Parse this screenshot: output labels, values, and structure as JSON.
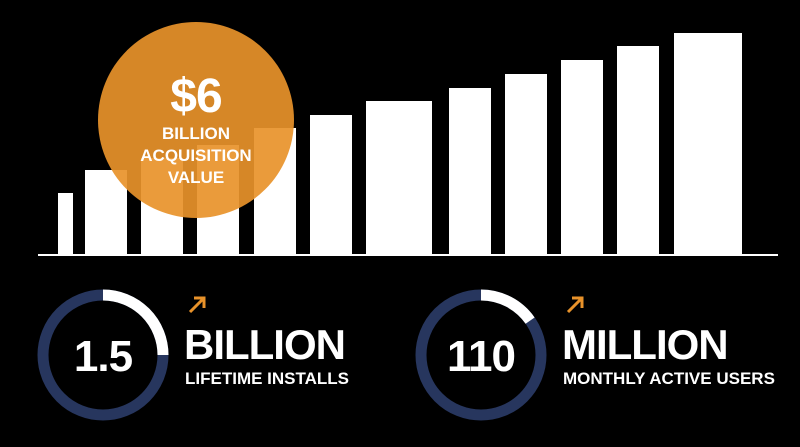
{
  "acquisition": {
    "value": "$6",
    "unit": "BILLION",
    "label_lines": [
      "ACQUISITION",
      "VALUE"
    ]
  },
  "stats": [
    {
      "value": "1.5",
      "unit": "BILLION",
      "label": "LIFETIME INSTALLS"
    },
    {
      "value": "110",
      "unit": "MILLION",
      "label": "MONTHLY ACTIVE USERS"
    }
  ]
}
